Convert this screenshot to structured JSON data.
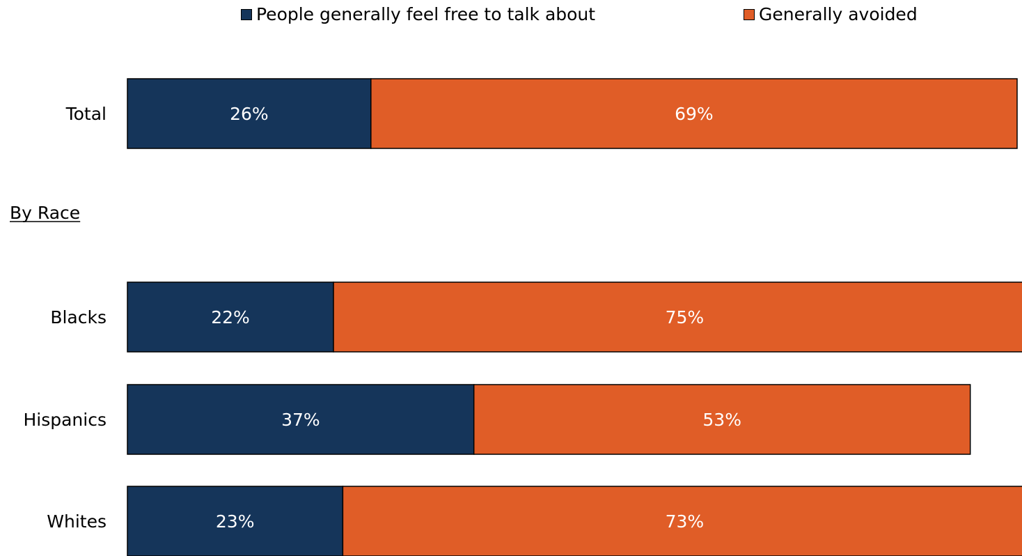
{
  "chart_data": {
    "type": "bar",
    "orientation": "horizontal",
    "stacked": true,
    "title": "",
    "xlabel": "",
    "ylabel": "",
    "xlim": [
      0,
      100
    ],
    "grid": false,
    "legend_position": "top",
    "section_label": "By Race",
    "categories": [
      "Total",
      "Blacks",
      "Hispanics",
      "Whites"
    ],
    "series": [
      {
        "name": "People generally feel free to talk about",
        "color": "#15355a",
        "values": [
          26,
          22,
          37,
          23
        ],
        "labels": [
          "26%",
          "22%",
          "37%",
          "23%"
        ]
      },
      {
        "name": "Generally avoided",
        "color": "#e05d27",
        "values": [
          69,
          75,
          53,
          73
        ],
        "labels": [
          "69%",
          "75%",
          "53%",
          "73%"
        ]
      }
    ]
  }
}
